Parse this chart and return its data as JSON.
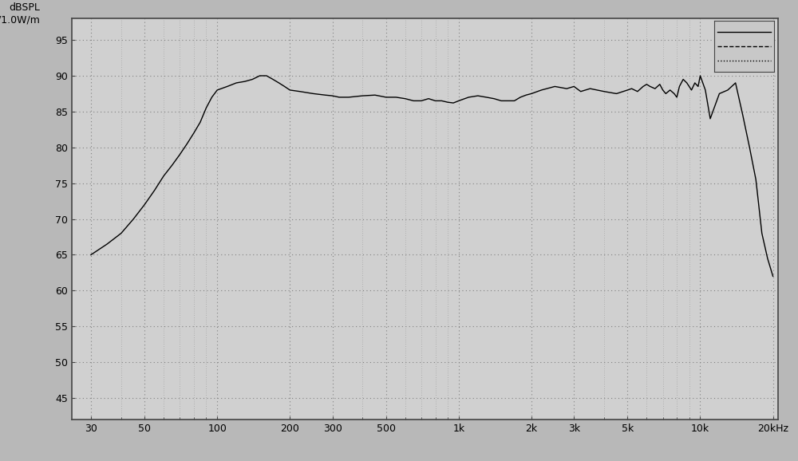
{
  "ylabel": "dBSPL\n/1.0W/m",
  "ylim": [
    42,
    98
  ],
  "yticks": [
    45,
    50,
    55,
    60,
    65,
    70,
    75,
    80,
    85,
    90,
    95
  ],
  "xtick_labels": [
    "30",
    "50",
    "100",
    "200",
    "300",
    "500",
    "1k",
    "2k",
    "3k",
    "5k",
    "10k",
    "20kHz"
  ],
  "xtick_freqs": [
    30,
    50,
    100,
    200,
    300,
    500,
    1000,
    2000,
    3000,
    5000,
    10000,
    20000
  ],
  "xmin": 25,
  "xmax": 21000,
  "bg_color": "#b8b8b8",
  "plot_bg_color": "#d0d0d0",
  "line_color": "#000000",
  "grid_color": "#808080",
  "freq_data": [
    30,
    35,
    40,
    45,
    50,
    55,
    60,
    65,
    70,
    75,
    80,
    85,
    90,
    95,
    100,
    110,
    120,
    130,
    140,
    150,
    160,
    170,
    180,
    190,
    200,
    220,
    250,
    280,
    300,
    320,
    350,
    400,
    450,
    500,
    550,
    600,
    650,
    700,
    750,
    800,
    850,
    900,
    950,
    1000,
    1100,
    1200,
    1300,
    1400,
    1500,
    1600,
    1700,
    1800,
    1900,
    2000,
    2200,
    2500,
    2800,
    3000,
    3200,
    3500,
    4000,
    4500,
    5000,
    5200,
    5500,
    5800,
    6000,
    6200,
    6500,
    6800,
    7000,
    7200,
    7500,
    7800,
    8000,
    8200,
    8500,
    8800,
    9000,
    9200,
    9500,
    9800,
    10000,
    10500,
    11000,
    12000,
    13000,
    14000,
    15000,
    16000,
    17000,
    18000,
    19000,
    20000
  ],
  "spl_data": [
    65.0,
    66.5,
    68.0,
    70.0,
    72.0,
    74.0,
    76.0,
    77.5,
    79.0,
    80.5,
    82.0,
    83.5,
    85.5,
    87.0,
    88.0,
    88.5,
    89.0,
    89.2,
    89.5,
    90.0,
    90.0,
    89.5,
    89.0,
    88.5,
    88.0,
    87.8,
    87.5,
    87.3,
    87.2,
    87.0,
    87.0,
    87.2,
    87.3,
    87.0,
    87.0,
    86.8,
    86.5,
    86.5,
    86.8,
    86.5,
    86.5,
    86.3,
    86.2,
    86.5,
    87.0,
    87.2,
    87.0,
    86.8,
    86.5,
    86.5,
    86.5,
    87.0,
    87.3,
    87.5,
    88.0,
    88.5,
    88.2,
    88.5,
    87.8,
    88.2,
    87.8,
    87.5,
    88.0,
    88.2,
    87.8,
    88.5,
    88.8,
    88.5,
    88.2,
    88.8,
    88.0,
    87.5,
    88.0,
    87.5,
    87.0,
    88.5,
    89.5,
    89.0,
    88.5,
    88.0,
    89.0,
    88.5,
    90.0,
    88.0,
    84.0,
    87.5,
    88.0,
    89.0,
    84.5,
    80.0,
    75.5,
    68.0,
    64.5,
    62.0
  ]
}
